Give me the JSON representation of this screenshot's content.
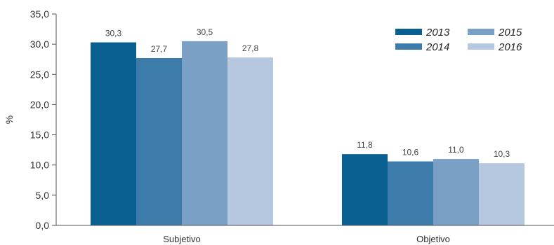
{
  "chart_data": {
    "type": "bar",
    "title": "",
    "xlabel": "",
    "ylabel": "%",
    "ylim": [
      0,
      35
    ],
    "yticks": [
      "0,0",
      "5,0",
      "10,0",
      "15,0",
      "20,0",
      "25,0",
      "30,0",
      "35,0"
    ],
    "categories": [
      "Subjetivo",
      "Objetivo"
    ],
    "series": [
      {
        "name": "2013",
        "values": [
          30.3,
          11.8
        ],
        "labels": [
          "30,3",
          "11,8"
        ],
        "color": "#0a5f91"
      },
      {
        "name": "2014",
        "values": [
          27.7,
          10.6
        ],
        "labels": [
          "27,7",
          "10,6"
        ],
        "color": "#3d7bab"
      },
      {
        "name": "2015",
        "values": [
          30.5,
          11.0
        ],
        "labels": [
          "30,5",
          "11,0"
        ],
        "color": "#7aa0c6"
      },
      {
        "name": "2016",
        "values": [
          27.8,
          10.3
        ],
        "labels": [
          "27,8",
          "10,3"
        ],
        "color": "#b5c8df"
      }
    ],
    "grid": false,
    "legend_position": "top-right"
  }
}
